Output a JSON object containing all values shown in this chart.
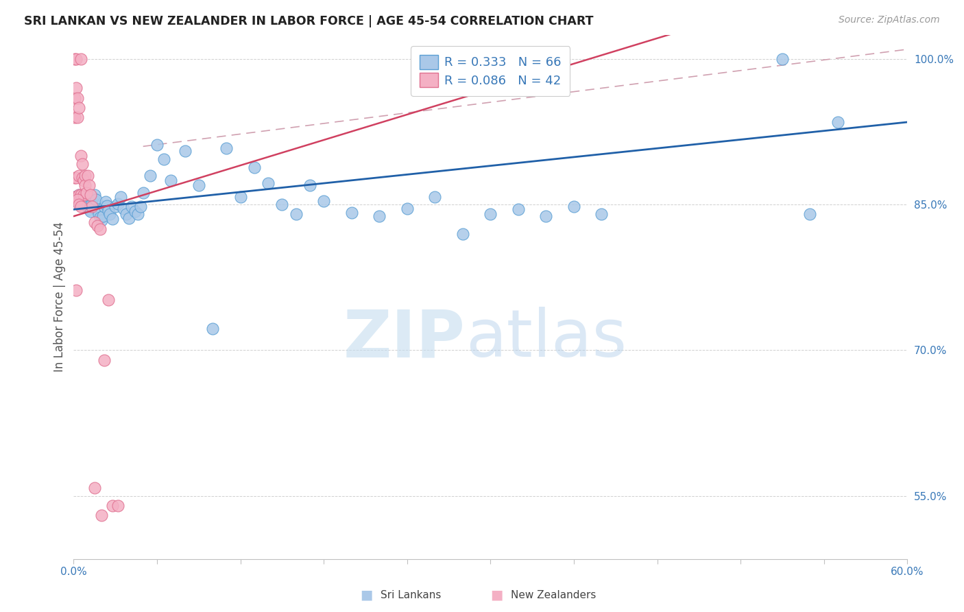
{
  "title": "SRI LANKAN VS NEW ZEALANDER IN LABOR FORCE | AGE 45-54 CORRELATION CHART",
  "source": "Source: ZipAtlas.com",
  "ylabel": "In Labor Force | Age 45-54",
  "xlim": [
    0.0,
    0.6
  ],
  "ylim": [
    0.485,
    1.025
  ],
  "xtick_pos": [
    0.0,
    0.06,
    0.12,
    0.18,
    0.24,
    0.3,
    0.36,
    0.42,
    0.48,
    0.54,
    0.6
  ],
  "xticklabels": [
    "0.0%",
    "",
    "",
    "",
    "",
    "",
    "",
    "",
    "",
    "",
    "60.0%"
  ],
  "ytick_positions": [
    0.55,
    0.7,
    0.85,
    1.0
  ],
  "ytick_labels": [
    "55.0%",
    "70.0%",
    "85.0%",
    "100.0%"
  ],
  "sri_color": "#aac8e8",
  "sri_edge": "#5a9fd4",
  "nz_color": "#f4b0c4",
  "nz_edge": "#e07090",
  "trend_blue": "#2060a8",
  "trend_pink": "#d04060",
  "trend_pink_dashed": "#d08090",
  "R_sri": 0.333,
  "N_sri": 66,
  "R_nz": 0.086,
  "N_nz": 42,
  "sri_x": [
    0.001,
    0.002,
    0.003,
    0.004,
    0.005,
    0.006,
    0.007,
    0.008,
    0.009,
    0.01,
    0.011,
    0.012,
    0.013,
    0.014,
    0.015,
    0.016,
    0.017,
    0.018,
    0.019,
    0.02,
    0.021,
    0.022,
    0.023,
    0.024,
    0.025,
    0.026,
    0.028,
    0.03,
    0.032,
    0.034,
    0.036,
    0.038,
    0.04,
    0.042,
    0.044,
    0.046,
    0.048,
    0.05,
    0.055,
    0.06,
    0.065,
    0.07,
    0.08,
    0.09,
    0.1,
    0.11,
    0.12,
    0.13,
    0.14,
    0.15,
    0.16,
    0.17,
    0.18,
    0.2,
    0.22,
    0.24,
    0.26,
    0.28,
    0.3,
    0.32,
    0.34,
    0.36,
    0.38,
    0.51,
    0.53,
    0.55
  ],
  "sri_y": [
    0.858,
    0.855,
    0.853,
    0.86,
    0.856,
    0.852,
    0.85,
    0.857,
    0.853,
    0.848,
    0.845,
    0.843,
    0.851,
    0.857,
    0.86,
    0.855,
    0.845,
    0.84,
    0.837,
    0.834,
    0.838,
    0.848,
    0.853,
    0.849,
    0.844,
    0.84,
    0.835,
    0.848,
    0.851,
    0.858,
    0.846,
    0.84,
    0.836,
    0.848,
    0.843,
    0.84,
    0.848,
    0.862,
    0.88,
    0.912,
    0.897,
    0.875,
    0.905,
    0.87,
    0.722,
    0.908,
    0.858,
    0.888,
    0.872,
    0.85,
    0.84,
    0.87,
    0.854,
    0.842,
    0.838,
    0.846,
    0.858,
    0.82,
    0.84,
    0.845,
    0.838,
    0.848,
    0.84,
    1.0,
    0.84,
    0.935
  ],
  "nz_x": [
    0.001,
    0.001,
    0.001,
    0.001,
    0.001,
    0.002,
    0.002,
    0.002,
    0.002,
    0.003,
    0.003,
    0.003,
    0.004,
    0.004,
    0.004,
    0.005,
    0.005,
    0.005,
    0.006,
    0.006,
    0.007,
    0.007,
    0.008,
    0.008,
    0.009,
    0.01,
    0.011,
    0.012,
    0.013,
    0.015,
    0.017,
    0.019,
    0.022,
    0.025,
    0.028,
    0.032,
    0.002,
    0.003,
    0.004,
    0.005,
    0.015,
    0.02
  ],
  "nz_y": [
    1.0,
    0.96,
    0.94,
    0.878,
    0.858,
    1.0,
    0.97,
    0.878,
    0.858,
    0.96,
    0.94,
    0.858,
    0.95,
    0.88,
    0.86,
    1.0,
    0.9,
    0.86,
    0.892,
    0.878,
    0.875,
    0.86,
    0.88,
    0.87,
    0.862,
    0.88,
    0.87,
    0.86,
    0.848,
    0.832,
    0.828,
    0.825,
    0.69,
    0.752,
    0.54,
    0.54,
    0.762,
    0.855,
    0.85,
    0.848,
    0.558,
    0.53
  ]
}
